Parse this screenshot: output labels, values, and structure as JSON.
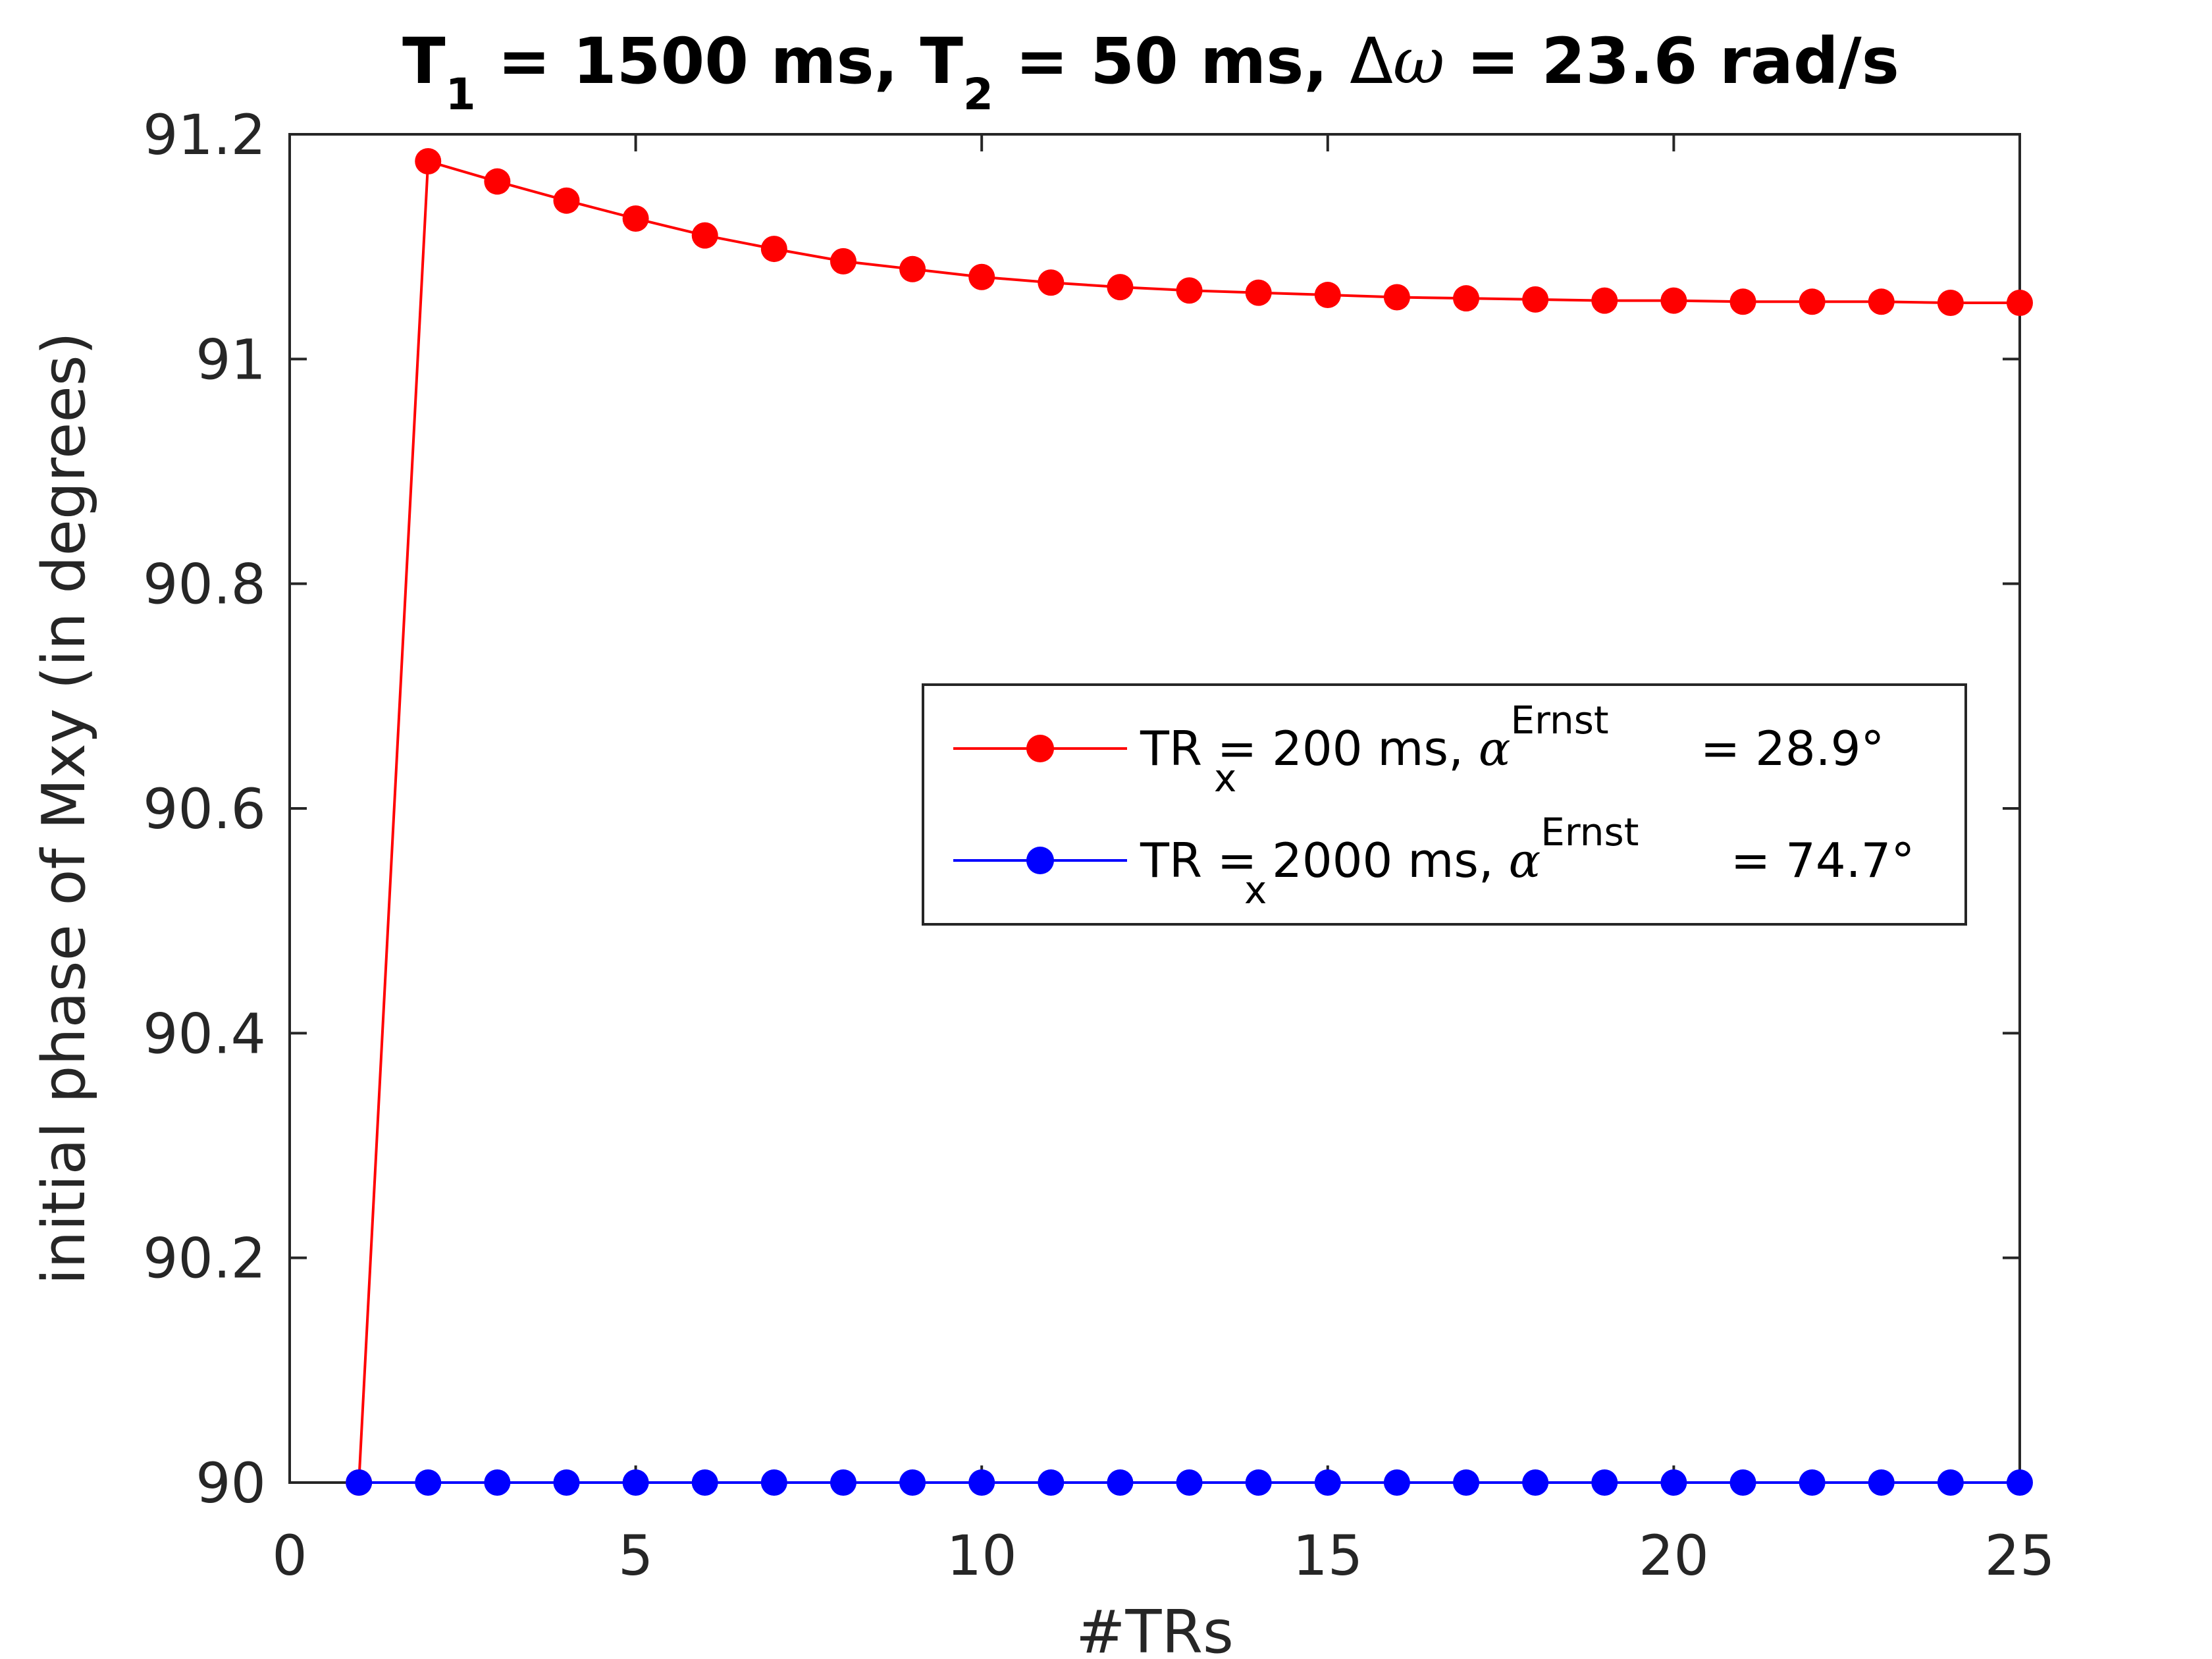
{
  "chart_data": {
    "type": "line",
    "title": {
      "t1_symbol": "T",
      "t1_sub": "1",
      "t1_value": " = 1500 ms, ",
      "t2_symbol": "T",
      "t2_sub": "2",
      "t2_value": " = 50 ms, ",
      "delta": "Δ",
      "omega": "ω",
      "dw_value": " = 23.6 rad/s"
    },
    "xlabel": "#TRs",
    "ylabel": "initial phase of Mxy (in degrees)",
    "xlim": [
      0,
      25
    ],
    "ylim": [
      90,
      91.2
    ],
    "xticks": [
      0,
      5,
      10,
      15,
      20,
      25
    ],
    "yticks": [
      90,
      90.2,
      90.4,
      90.6,
      90.8,
      91,
      91.2
    ],
    "ytick_labels": [
      "90",
      "90.2",
      "90.4",
      "90.6",
      "90.8",
      "91",
      "91.2"
    ],
    "x": [
      1,
      2,
      3,
      4,
      5,
      6,
      7,
      8,
      9,
      10,
      11,
      12,
      13,
      14,
      15,
      16,
      17,
      18,
      19,
      20,
      21,
      22,
      23,
      24,
      25
    ],
    "series": [
      {
        "name": "TR = 200 ms",
        "color": "#ff0000",
        "legend": {
          "prefix": "TR = 200 ms, ",
          "alpha": "α",
          "sub": "x",
          "sup": "Ernst",
          "suffix": " = 28.9°"
        },
        "values": [
          90.0,
          91.176,
          91.158,
          91.141,
          91.125,
          91.11,
          91.098,
          91.087,
          91.08,
          91.073,
          91.068,
          91.064,
          91.061,
          91.059,
          91.057,
          91.055,
          91.054,
          91.053,
          91.052,
          91.052,
          91.051,
          91.051,
          91.051,
          91.05,
          91.05
        ]
      },
      {
        "name": "TR = 2000 ms",
        "color": "#0000ff",
        "legend": {
          "prefix": "TR = 2000 ms, ",
          "alpha": "α",
          "sub": "x",
          "sup": "Ernst",
          "suffix": " = 74.7°"
        },
        "values": [
          90,
          90,
          90,
          90,
          90,
          90,
          90,
          90,
          90,
          90,
          90,
          90,
          90,
          90,
          90,
          90,
          90,
          90,
          90,
          90,
          90,
          90,
          90,
          90,
          90
        ]
      }
    ],
    "legend_position": "right-center",
    "grid": false
  }
}
